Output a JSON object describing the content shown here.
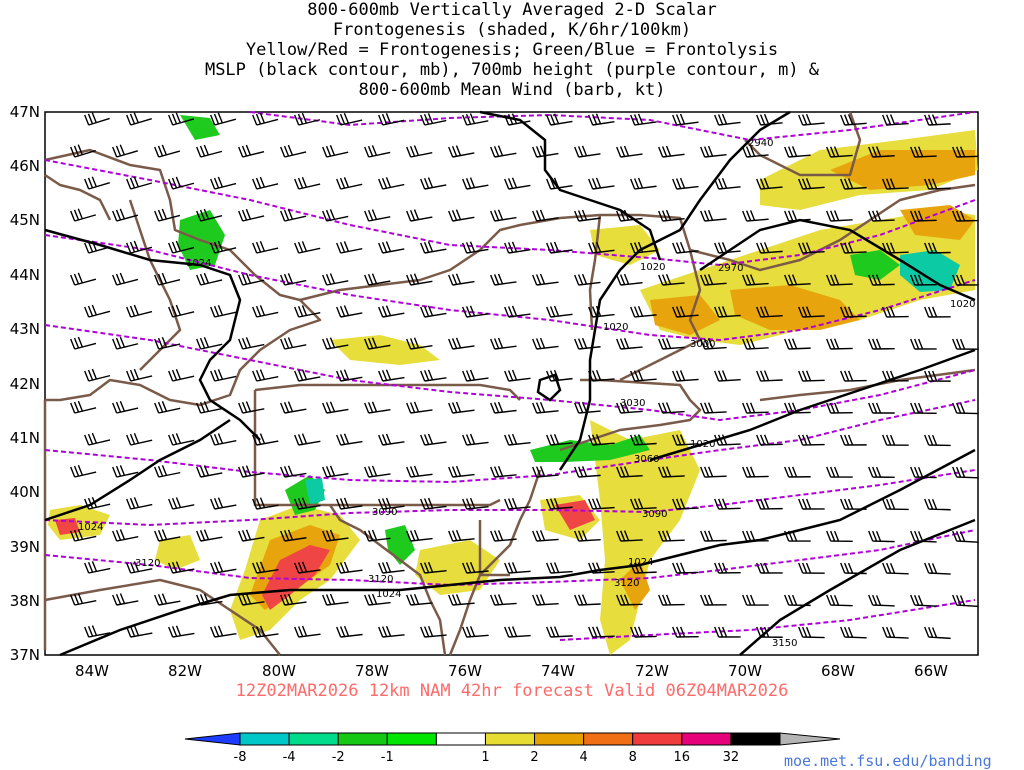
{
  "title_lines": [
    "800-600mb Vertically Averaged 2-D Scalar",
    "Frontogenesis (shaded, K/6hr/100km)",
    "Yellow/Red = Frontogenesis;  Green/Blue = Frontolysis",
    "MSLP (black contour, mb), 700mb height (purple contour, m) &",
    "800-600mb Mean Wind (barb, kt)"
  ],
  "subtitle": "12Z02MAR2026 12km NAM 42hr forecast Valid 06Z04MAR2026",
  "credit": "moe.met.fsu.edu/banding",
  "lat_labels": [
    "47N",
    "46N",
    "45N",
    "44N",
    "43N",
    "42N",
    "41N",
    "40N",
    "39N",
    "38N",
    "37N"
  ],
  "lon_labels": [
    "84W",
    "82W",
    "80W",
    "78W",
    "76W",
    "74W",
    "72W",
    "70W",
    "68W",
    "66W"
  ],
  "colorbar": {
    "labels": [
      "-8",
      "-4",
      "-2",
      "-1",
      "1",
      "2",
      "4",
      "8",
      "16",
      "32"
    ],
    "colors": [
      "#1e3cff",
      "#00c8c8",
      "#00dc8c",
      "#14c814",
      "#00e600",
      "#ffffff",
      "#e6dc32",
      "#e6a000",
      "#f06e14",
      "#f03c3c",
      "#e6007a",
      "#000000",
      "#b4b4b4"
    ]
  },
  "mslp_labels": [
    "1020",
    "1024",
    "1024",
    "1020",
    "1020",
    "1024",
    "1020",
    "1024"
  ],
  "height_labels": [
    "2940",
    "2970",
    "3000",
    "3030",
    "3060",
    "3090",
    "3090",
    "3120",
    "3120",
    "3120",
    "3150"
  ],
  "colors": {
    "mslp": "#000000",
    "height": "#b000d8",
    "borders": "#7a5a48",
    "title_sub": "#ff6a6a",
    "credit": "#4a78d8"
  }
}
